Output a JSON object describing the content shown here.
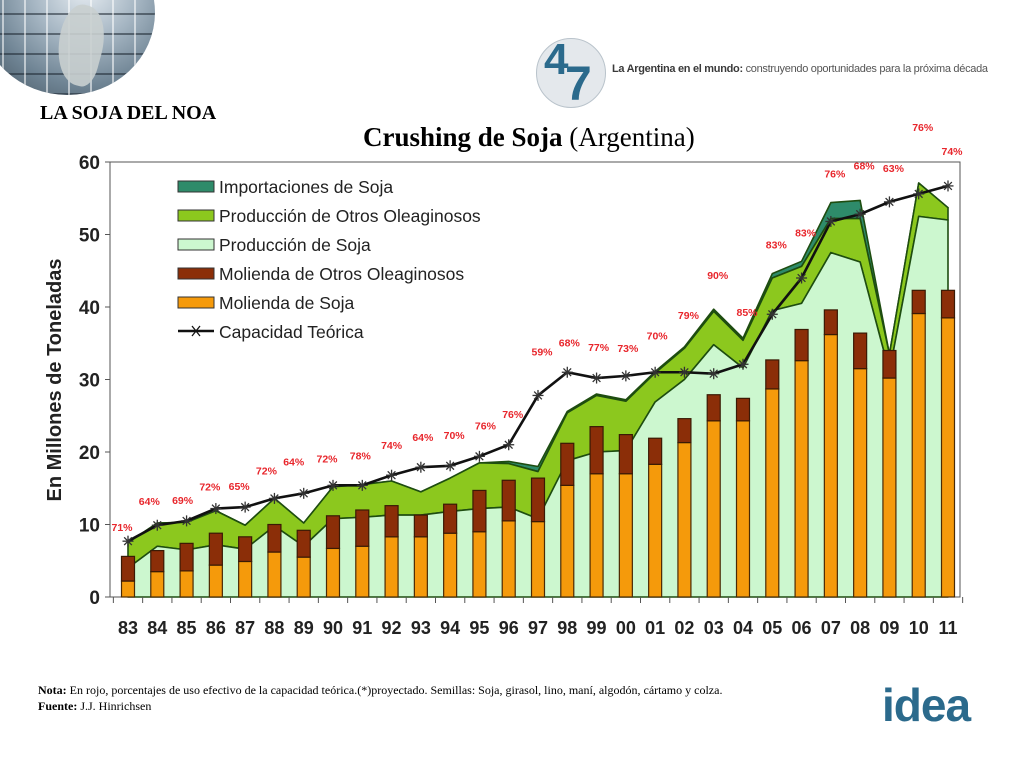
{
  "header": {
    "section_title": "LA SOJA DEL NOA",
    "logo_text": "47",
    "tagline_bold": "La Argentina en el mundo:",
    "tagline_rest": " construyendo oportunidades para la próxima década"
  },
  "chart_title": {
    "bold": "Crushing  de Soja",
    "normal": " (Argentina)"
  },
  "footer": {
    "nota_label": "Nota:",
    "nota_text": " En rojo, porcentajes de uso efectivo de la capacidad teórica.(*)proyectado. Semillas: Soja, girasol, lino, maní, algodón, cártamo y colza.",
    "fuente_label": "Fuente:",
    "fuente_text": " J.J. Hinrichsen",
    "brand_logo": "idea"
  },
  "colors": {
    "importaciones": "#2e8b6a",
    "otros_oleaginosos_prod": "#8cc81e",
    "soja_prod": "#ccf7cf",
    "molienda_otros": "#8b2e08",
    "molienda_soja": "#f59a0b",
    "capacidad": "#111111",
    "pct_labels": "#e8262c",
    "brand_blue": "#2b6a8c"
  },
  "chart_data": {
    "type": "bar",
    "title": "Crushing de Soja (Argentina)",
    "xlabel": "",
    "ylabel": "En Millones de Toneladas",
    "ylim": [
      0,
      60
    ],
    "yticks": [
      0,
      10,
      20,
      30,
      40,
      50,
      60
    ],
    "grid": false,
    "legend_position": "top-left",
    "categories": [
      "83",
      "84",
      "85",
      "86",
      "87",
      "88",
      "89",
      "90",
      "91",
      "92",
      "93",
      "94",
      "95",
      "96",
      "97",
      "98",
      "99",
      "00",
      "01",
      "02",
      "03",
      "04",
      "05",
      "06",
      "07",
      "08",
      "09",
      "10",
      "11"
    ],
    "legend": [
      {
        "key": "importaciones",
        "label": "Importaciones de Soja",
        "kind": "area"
      },
      {
        "key": "otros_oleaginosos_prod",
        "label": "Producción de Otros Oleaginosos",
        "kind": "area"
      },
      {
        "key": "soja_prod",
        "label": "Producción de Soja",
        "kind": "area"
      },
      {
        "key": "molienda_otros",
        "label": "Molienda de Otros Oleaginosos",
        "kind": "bar"
      },
      {
        "key": "molienda_soja",
        "label": "Molienda de Soja",
        "kind": "bar"
      },
      {
        "key": "capacidad",
        "label": "Capacidad Teórica",
        "kind": "line"
      }
    ],
    "series": [
      {
        "name": "Molienda de Soja",
        "key": "molienda_soja",
        "stack": "bars",
        "values": [
          2.2,
          3.5,
          3.6,
          4.4,
          4.9,
          6.2,
          5.5,
          6.7,
          7.0,
          8.3,
          8.3,
          8.8,
          9.0,
          10.5,
          10.4,
          15.4,
          17.0,
          17.0,
          18.3,
          21.3,
          24.3,
          24.3,
          28.7,
          32.6,
          36.2,
          31.5,
          30.2,
          39.1,
          38.5
        ]
      },
      {
        "name": "Molienda de Otros Oleaginosos",
        "key": "molienda_otros",
        "stack": "bars",
        "values": [
          3.4,
          2.9,
          3.8,
          4.4,
          3.4,
          3.8,
          3.7,
          4.5,
          5.0,
          4.3,
          3.0,
          4.0,
          5.7,
          5.6,
          6.0,
          5.8,
          6.5,
          5.4,
          3.6,
          3.3,
          3.6,
          3.1,
          4.0,
          4.3,
          3.4,
          4.9,
          3.8,
          3.2,
          3.8
        ]
      },
      {
        "name": "Producción de Soja",
        "key": "soja_prod",
        "stack": "area",
        "values": [
          4.0,
          7.0,
          6.5,
          7.2,
          6.6,
          9.8,
          7.0,
          10.8,
          11.0,
          11.3,
          11.3,
          11.8,
          12.2,
          12.4,
          10.8,
          18.8,
          20.0,
          20.2,
          26.9,
          30.0,
          34.8,
          31.6,
          39.5,
          40.5,
          47.5,
          46.2,
          31.0,
          52.5,
          52.0
        ]
      },
      {
        "name": "Producción de Otros Oleaginosos",
        "key": "otros_oleaginosos_prod",
        "stack": "area",
        "values": [
          3.5,
          3.2,
          3.8,
          4.7,
          3.3,
          3.8,
          3.2,
          4.4,
          4.5,
          4.7,
          3.2,
          4.6,
          6.3,
          6.0,
          6.5,
          6.6,
          7.8,
          6.8,
          4.0,
          4.3,
          4.6,
          3.8,
          4.5,
          5.1,
          4.7,
          6.0,
          2.5,
          4.6,
          1.7
        ]
      },
      {
        "name": "Importaciones de Soja",
        "key": "importaciones",
        "stack": "area",
        "values": [
          0,
          0,
          0,
          0,
          0,
          0,
          0,
          0,
          0,
          0,
          0,
          0,
          0,
          0.3,
          0.7,
          0.2,
          0.2,
          0.2,
          0.2,
          0.2,
          0.3,
          0.3,
          0.6,
          0.7,
          2.2,
          2.5,
          0,
          0,
          0
        ]
      },
      {
        "name": "Capacidad Teórica",
        "key": "capacidad",
        "type": "line",
        "marker": "asterisk",
        "values": [
          7.7,
          9.9,
          10.5,
          12.2,
          12.4,
          13.6,
          14.3,
          15.4,
          15.4,
          16.8,
          17.9,
          18.1,
          19.4,
          21.0,
          27.8,
          31.0,
          30.2,
          30.5,
          31.0,
          31.0,
          30.8,
          32.1,
          39.0,
          44.0,
          51.8,
          52.8,
          54.5,
          55.6,
          56.7
        ]
      },
      {
        "name": "Uso efectivo de la capacidad (%)",
        "key": "pct",
        "type": "annotation",
        "values": [
          71,
          64,
          69,
          72,
          65,
          72,
          64,
          72,
          78,
          74,
          64,
          70,
          76,
          76,
          59,
          68,
          77,
          73,
          70,
          79,
          90,
          85,
          83,
          83,
          76,
          68,
          63,
          76,
          74
        ]
      }
    ]
  }
}
